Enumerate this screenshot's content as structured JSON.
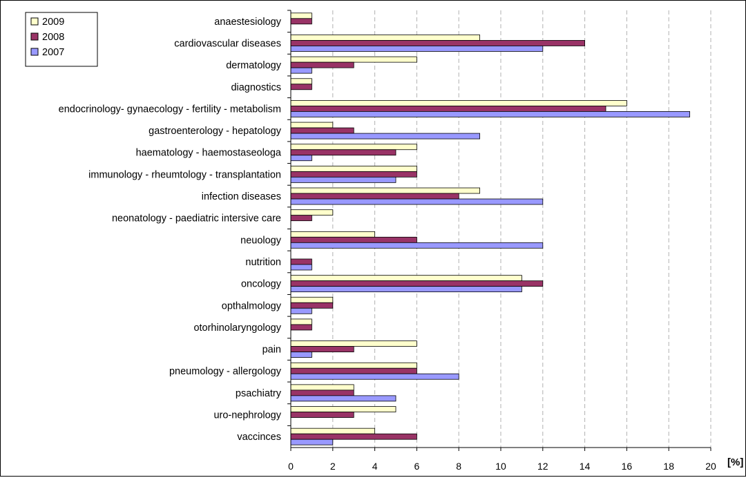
{
  "chart_data": {
    "type": "bar",
    "orientation": "horizontal",
    "categories": [
      "anaestesiology",
      "cardiovascular diseases",
      "dermatology",
      "diagnostics",
      "endocrinology- gynaecology - fertility - metabolism",
      "gastroenterology - hepatology",
      "haematology - haemostaseologa",
      "immunology - rheumtology - transplantation",
      "infection diseases",
      "neonatology - paediatric intersive care",
      "neuology",
      "nutrition",
      "oncology",
      "opthalmology",
      "otorhinolaryngology",
      "pain",
      "pneumology - allergology",
      "psachiatry",
      "uro-nephrology",
      "vaccinces"
    ],
    "series": [
      {
        "name": "2009",
        "color": "#ffffcc",
        "values": [
          1,
          9,
          6,
          1,
          16,
          2,
          6,
          6,
          9,
          2,
          4,
          0,
          11,
          2,
          1,
          6,
          6,
          3,
          5,
          4
        ]
      },
      {
        "name": "2008",
        "color": "#993366",
        "values": [
          1,
          14,
          3,
          1,
          15,
          3,
          5,
          6,
          8,
          1,
          6,
          1,
          12,
          2,
          1,
          3,
          6,
          3,
          3,
          6
        ]
      },
      {
        "name": "2007",
        "color": "#9999ff",
        "values": [
          0,
          12,
          1,
          0,
          19,
          9,
          1,
          5,
          12,
          0,
          12,
          1,
          11,
          1,
          0,
          1,
          8,
          5,
          0,
          2
        ]
      }
    ],
    "xticks": [
      "0",
      "2",
      "4",
      "6",
      "8",
      "10",
      "12",
      "14",
      "16",
      "18",
      "20"
    ],
    "xlim": [
      0,
      20
    ],
    "xlabel": "[%]",
    "grid": "vertical dashed",
    "legend_position": "top-left",
    "legend_order": [
      "2009",
      "2008",
      "2007"
    ]
  }
}
